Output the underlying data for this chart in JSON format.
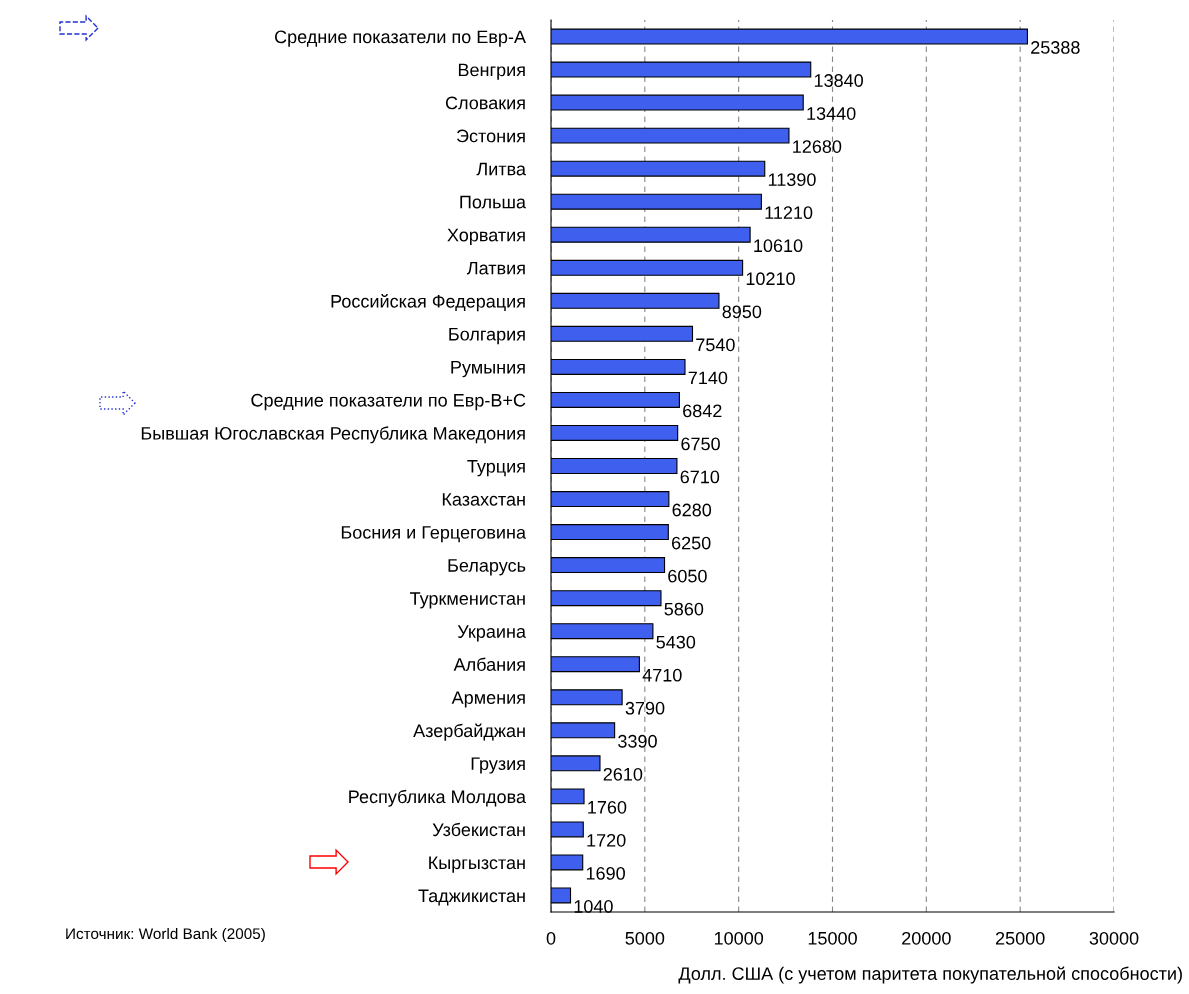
{
  "chart_data": {
    "type": "bar",
    "orientation": "horizontal",
    "categories": [
      "Средние показатели по Евр-А",
      "Венгрия",
      "Словакия",
      "Эстония",
      "Литва",
      "Польша",
      "Хорватия",
      "Латвия",
      "Российская Федерация",
      "Болгария",
      "Румыния",
      "Средние показатели по Евр-В+С",
      "Бывшая Югославская Республика Македония",
      "Турция",
      "Казахстан",
      "Босния и Герцеговина",
      "Беларусь",
      "Туркменистан",
      "Украина",
      "Албания",
      "Армения",
      "Азербайджан",
      "Грузия",
      "Республика Молдова",
      "Узбекистан",
      "Кыргызстан",
      "Таджикистан"
    ],
    "values": [
      25388,
      13840,
      13440,
      12680,
      11390,
      11210,
      10610,
      10210,
      8950,
      7540,
      7140,
      6842,
      6750,
      6710,
      6280,
      6250,
      6050,
      5860,
      5430,
      4710,
      3790,
      3390,
      2610,
      1760,
      1720,
      1690,
      1040
    ],
    "color": "#3f5fef",
    "data_labels": true,
    "xlim": [
      0,
      30000
    ],
    "xticks": [
      0,
      5000,
      10000,
      15000,
      20000,
      25000,
      30000
    ],
    "xlabel": "Долл. США (с учетом паритета покупательной способности)",
    "grid": "x",
    "annotations": [
      "Источник: World Bank (2005)"
    ]
  }
}
